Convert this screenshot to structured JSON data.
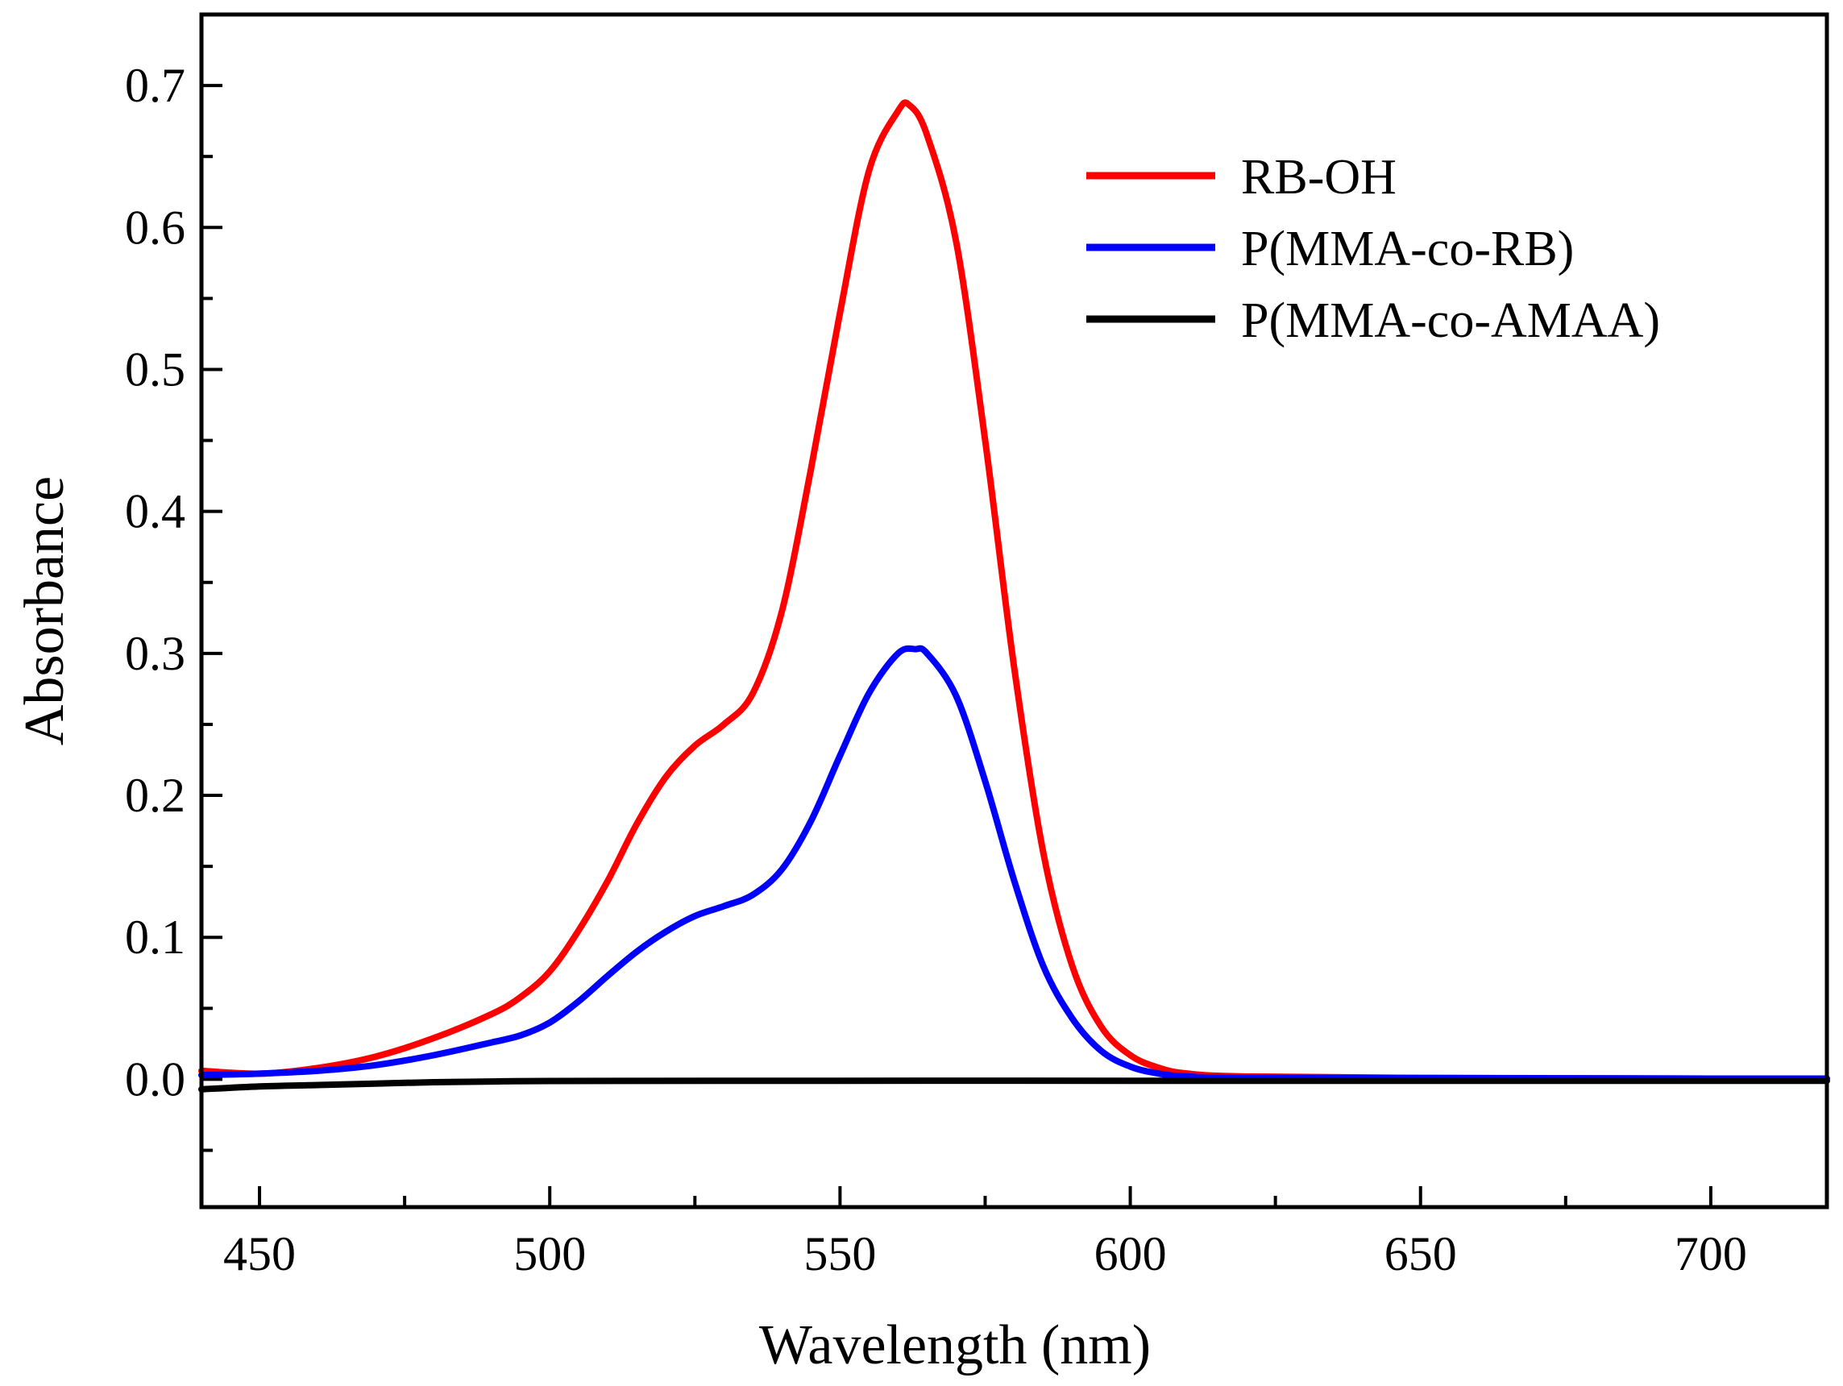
{
  "chart_data": {
    "type": "line",
    "title": "",
    "xlabel": "Wavelength (nm)",
    "ylabel": "Absorbance",
    "xlim": [
      440,
      720
    ],
    "ylim": [
      -0.09,
      0.75
    ],
    "x_ticks": [
      450,
      500,
      550,
      600,
      650,
      700
    ],
    "x_tick_labels": [
      "450",
      "500",
      "550",
      "600",
      "650",
      "700"
    ],
    "x_minor_ticks": [
      475,
      525,
      575,
      625,
      675
    ],
    "y_ticks": [
      0.0,
      0.1,
      0.2,
      0.3,
      0.4,
      0.5,
      0.6,
      0.7
    ],
    "y_tick_labels": [
      "0.0",
      "0.1",
      "0.2",
      "0.3",
      "0.4",
      "0.5",
      "0.6",
      "0.7"
    ],
    "y_minor_ticks": [
      -0.05,
      0.05,
      0.15,
      0.25,
      0.35,
      0.45,
      0.55,
      0.65
    ],
    "legend_position": "top-right",
    "series": [
      {
        "name": "RB-OH",
        "color": "#ff0000",
        "x": [
          440,
          450,
          460,
          470,
          480,
          490,
          495,
          500,
          505,
          510,
          515,
          520,
          525,
          530,
          535,
          540,
          545,
          550,
          555,
          560,
          562,
          565,
          570,
          575,
          580,
          585,
          590,
          595,
          600,
          605,
          610,
          620,
          650,
          700,
          720
        ],
        "values": [
          0.006,
          0.004,
          0.008,
          0.016,
          0.029,
          0.046,
          0.058,
          0.076,
          0.105,
          0.14,
          0.18,
          0.213,
          0.235,
          0.25,
          0.272,
          0.33,
          0.43,
          0.54,
          0.64,
          0.682,
          0.686,
          0.665,
          0.59,
          0.45,
          0.29,
          0.16,
          0.08,
          0.037,
          0.017,
          0.008,
          0.004,
          0.002,
          0.001,
          0.0005,
          0.0005
        ]
      },
      {
        "name": "P(MMA-co-RB)",
        "color": "#0000ff",
        "x": [
          440,
          450,
          460,
          470,
          480,
          490,
          495,
          500,
          505,
          510,
          515,
          520,
          525,
          530,
          535,
          540,
          545,
          550,
          555,
          560,
          563,
          565,
          570,
          575,
          580,
          585,
          590,
          595,
          600,
          605,
          610,
          620,
          650,
          700,
          720
        ],
        "values": [
          0.003,
          0.004,
          0.006,
          0.01,
          0.017,
          0.026,
          0.031,
          0.04,
          0.055,
          0.073,
          0.09,
          0.104,
          0.115,
          0.122,
          0.13,
          0.148,
          0.182,
          0.228,
          0.272,
          0.3,
          0.303,
          0.3,
          0.27,
          0.21,
          0.14,
          0.08,
          0.043,
          0.02,
          0.009,
          0.004,
          0.002,
          0.001,
          0.001,
          0.0005,
          0.0005
        ]
      },
      {
        "name": "P(MMA-co-AMAA)",
        "color": "#000000",
        "x": [
          440,
          450,
          460,
          470,
          480,
          490,
          500,
          550,
          600,
          650,
          700,
          720
        ],
        "values": [
          -0.007,
          -0.005,
          -0.004,
          -0.003,
          -0.002,
          -0.0015,
          -0.0012,
          -0.001,
          -0.001,
          -0.001,
          -0.001,
          -0.001
        ]
      }
    ]
  }
}
